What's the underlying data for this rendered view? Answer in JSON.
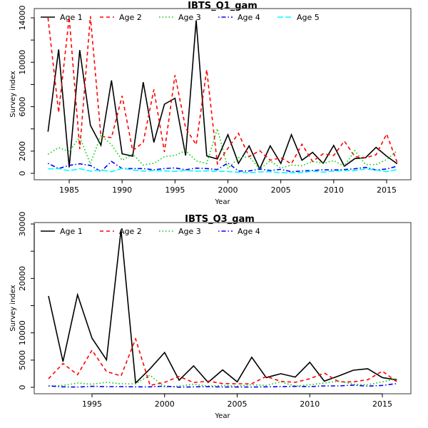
{
  "chart_data": [
    {
      "type": "line",
      "title": "IBTS_Q1_gam",
      "xlabel": "Year",
      "ylabel": "Survey index",
      "xlim": [
        1983,
        2016
      ],
      "ylim": [
        0,
        14000
      ],
      "x_ticks": [
        1985,
        1990,
        1995,
        2000,
        2005,
        2010,
        2015
      ],
      "y_ticks": [
        0,
        2000,
        4000,
        6000,
        8000,
        10000,
        12000,
        14000
      ],
      "y_tick_labels": [
        "0",
        "2000",
        "",
        "6000",
        "",
        "10000",
        "",
        "14000"
      ],
      "legend_position": "top-left",
      "grid": false,
      "x": [
        1983,
        1984,
        1985,
        1986,
        1987,
        1988,
        1989,
        1990,
        1991,
        1992,
        1993,
        1994,
        1995,
        1996,
        1997,
        1998,
        1999,
        2000,
        2001,
        2002,
        2003,
        2004,
        2005,
        2006,
        2007,
        2008,
        2009,
        2010,
        2011,
        2012,
        2013,
        2014,
        2015,
        2016
      ],
      "series": [
        {
          "name": "Age 1",
          "color": "#000000",
          "dash": "solid",
          "values": [
            3750,
            11150,
            540,
            11100,
            4330,
            2530,
            8370,
            1760,
            1550,
            8200,
            2790,
            6220,
            6760,
            1610,
            13780,
            1570,
            1290,
            3480,
            900,
            2470,
            390,
            2470,
            900,
            3480,
            1180,
            1890,
            900,
            2510,
            640,
            1330,
            1400,
            2340,
            1550,
            860
          ]
        },
        {
          "name": "Age 2",
          "color": "#ff0000",
          "dash": "dashed",
          "values": [
            14000,
            5470,
            14050,
            2190,
            14150,
            3330,
            3220,
            6970,
            2040,
            2790,
            7550,
            1930,
            8840,
            4080,
            2580,
            9330,
            860,
            2250,
            3600,
            1500,
            2040,
            1180,
            1400,
            860,
            2620,
            1070,
            1760,
            1610,
            2900,
            1500,
            1400,
            1670,
            3540,
            970
          ]
        },
        {
          "name": "Age 3",
          "color": "#00cd00",
          "dash": "dotted",
          "values": [
            1720,
            2320,
            1970,
            3260,
            860,
            3430,
            2580,
            1180,
            1720,
            750,
            900,
            1500,
            1610,
            2040,
            1120,
            900,
            4010,
            430,
            1400,
            1500,
            390,
            1120,
            470,
            750,
            690,
            1070,
            900,
            1140,
            640,
            2040,
            790,
            790,
            1240,
            2040
          ]
        },
        {
          "name": "Age 4",
          "color": "#0000ff",
          "dash": "dotdash",
          "values": [
            900,
            430,
            710,
            860,
            710,
            170,
            1070,
            430,
            430,
            430,
            320,
            430,
            490,
            320,
            470,
            430,
            340,
            940,
            210,
            210,
            390,
            260,
            360,
            150,
            210,
            260,
            320,
            300,
            340,
            410,
            540,
            300,
            390,
            640
          ]
        },
        {
          "name": "Age 5",
          "color": "#00ffff",
          "dash": "longdash",
          "values": [
            400,
            430,
            230,
            420,
            200,
            300,
            150,
            450,
            300,
            200,
            250,
            220,
            180,
            250,
            200,
            220,
            190,
            170,
            100,
            50,
            130,
            150,
            50,
            70,
            70,
            200,
            100,
            200,
            250,
            250,
            400,
            300,
            150,
            350
          ]
        }
      ]
    },
    {
      "type": "line",
      "title": "IBTS_Q3_gam",
      "xlabel": "Year",
      "ylabel": "Survey index",
      "xlim": [
        1992,
        2016
      ],
      "ylim": [
        0,
        30000
      ],
      "x_ticks": [
        1995,
        2000,
        2005,
        2010,
        2015
      ],
      "y_ticks": [
        0,
        5000,
        10000,
        15000,
        20000,
        25000,
        30000
      ],
      "y_tick_labels": [
        "0",
        "5000",
        "10000",
        "",
        "20000",
        "",
        "30000"
      ],
      "legend_position": "top-left",
      "grid": false,
      "x": [
        1992,
        1993,
        1994,
        1995,
        1996,
        1997,
        1998,
        1999,
        2000,
        2001,
        2002,
        2003,
        2004,
        2005,
        2006,
        2007,
        2008,
        2009,
        2010,
        2011,
        2012,
        2013,
        2014,
        2015,
        2016
      ],
      "series": [
        {
          "name": "Age 1",
          "color": "#000000",
          "dash": "solid",
          "values": [
            16780,
            4730,
            17000,
            9020,
            5040,
            28950,
            790,
            3420,
            6400,
            1310,
            3940,
            920,
            3200,
            1010,
            5520,
            1800,
            2500,
            1880,
            4600,
            1140,
            2100,
            3150,
            3420,
            1800,
            1360
          ]
        },
        {
          "name": "Age 2",
          "color": "#ff0000",
          "dash": "dashed",
          "values": [
            1580,
            4380,
            2320,
            6830,
            2890,
            2100,
            8890,
            350,
            920,
            2010,
            880,
            1140,
            700,
            660,
            660,
            2010,
            1100,
            920,
            1580,
            2630,
            1010,
            1010,
            1400,
            2980,
            1010
          ]
        },
        {
          "name": "Age 3",
          "color": "#00cd00",
          "dash": "dotted",
          "values": [
            220,
            350,
            790,
            570,
            920,
            660,
            660,
            2230,
            40,
            220,
            570,
            220,
            350,
            220,
            480,
            350,
            1010,
            220,
            480,
            790,
            1140,
            570,
            480,
            1010,
            1580
          ]
        },
        {
          "name": "Age 4",
          "color": "#0000ff",
          "dash": "dotdash",
          "values": [
            260,
            90,
            50,
            180,
            130,
            130,
            90,
            90,
            220,
            30,
            90,
            130,
            50,
            50,
            50,
            90,
            130,
            180,
            130,
            260,
            260,
            400,
            220,
            350,
            700
          ]
        }
      ]
    }
  ]
}
